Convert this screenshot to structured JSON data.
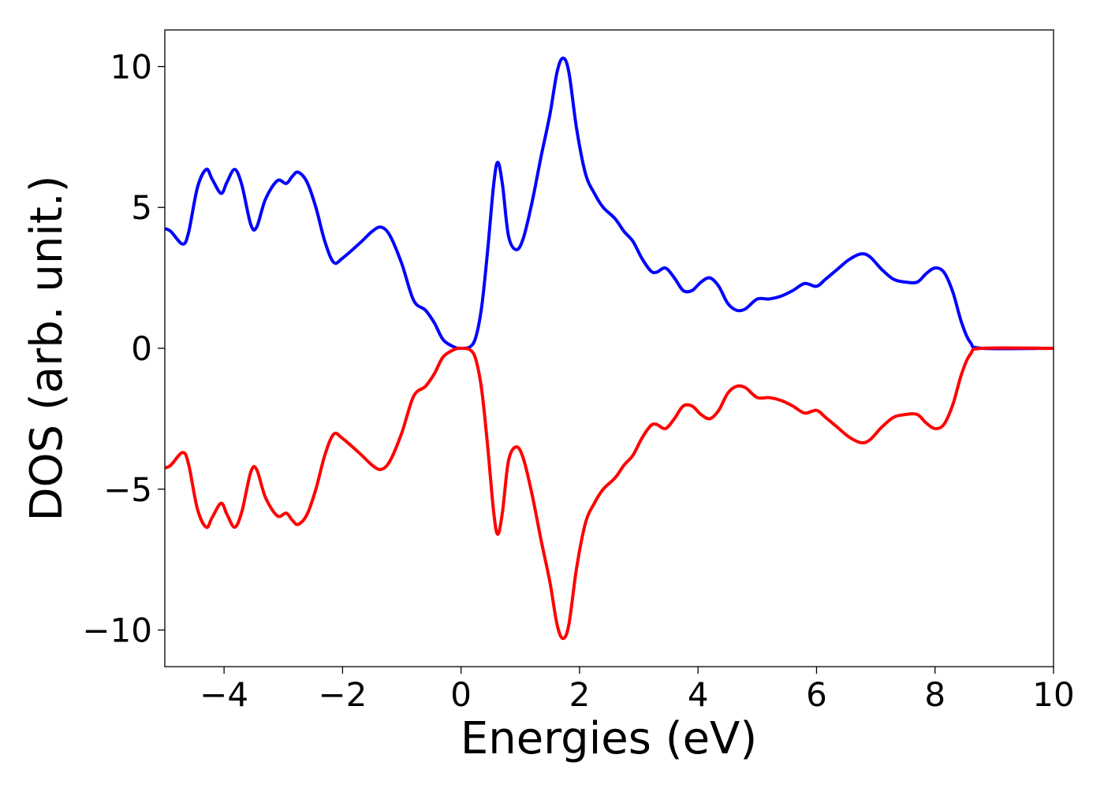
{
  "chart_data": {
    "type": "line",
    "title": "",
    "xlabel": "Energies (eV)",
    "ylabel": "DOS (arb. unit.)",
    "xlim": [
      -5,
      10
    ],
    "ylim": [
      -11.3,
      11.3
    ],
    "x_ticks": [
      -4,
      -2,
      0,
      2,
      4,
      6,
      8,
      10
    ],
    "x_tick_labels": [
      "−4",
      "−2",
      "0",
      "2",
      "4",
      "6",
      "8",
      "10"
    ],
    "y_ticks": [
      -10,
      -5,
      0,
      5,
      10
    ],
    "y_tick_labels": [
      "−10",
      "−5",
      "0",
      "5",
      "10"
    ],
    "grid": false,
    "legend": "none",
    "series": [
      {
        "color": "#0000ff",
        "points": [
          [
            -5.0,
            4.25
          ],
          [
            -4.9,
            4.15
          ],
          [
            -4.7,
            3.7
          ],
          [
            -4.6,
            4.1
          ],
          [
            -4.45,
            5.7
          ],
          [
            -4.3,
            6.35
          ],
          [
            -4.2,
            6.0
          ],
          [
            -4.05,
            5.5
          ],
          [
            -3.95,
            5.9
          ],
          [
            -3.82,
            6.35
          ],
          [
            -3.7,
            5.8
          ],
          [
            -3.55,
            4.4
          ],
          [
            -3.45,
            4.3
          ],
          [
            -3.3,
            5.3
          ],
          [
            -3.1,
            5.95
          ],
          [
            -2.95,
            5.85
          ],
          [
            -2.85,
            6.1
          ],
          [
            -2.75,
            6.25
          ],
          [
            -2.6,
            5.9
          ],
          [
            -2.45,
            5.0
          ],
          [
            -2.3,
            3.8
          ],
          [
            -2.15,
            3.05
          ],
          [
            -2.0,
            3.2
          ],
          [
            -1.7,
            3.75
          ],
          [
            -1.5,
            4.15
          ],
          [
            -1.35,
            4.3
          ],
          [
            -1.2,
            4.0
          ],
          [
            -1.0,
            3.0
          ],
          [
            -0.8,
            1.7
          ],
          [
            -0.6,
            1.35
          ],
          [
            -0.45,
            0.9
          ],
          [
            -0.3,
            0.3
          ],
          [
            -0.1,
            0.03
          ],
          [
            0.0,
            0.0
          ],
          [
            0.15,
            0.05
          ],
          [
            0.25,
            0.4
          ],
          [
            0.35,
            1.5
          ],
          [
            0.45,
            3.5
          ],
          [
            0.55,
            5.8
          ],
          [
            0.62,
            6.6
          ],
          [
            0.7,
            5.8
          ],
          [
            0.8,
            4.0
          ],
          [
            0.93,
            3.5
          ],
          [
            1.05,
            3.9
          ],
          [
            1.2,
            5.2
          ],
          [
            1.35,
            6.8
          ],
          [
            1.5,
            8.3
          ],
          [
            1.62,
            9.8
          ],
          [
            1.72,
            10.3
          ],
          [
            1.82,
            9.8
          ],
          [
            1.95,
            7.8
          ],
          [
            2.1,
            6.2
          ],
          [
            2.25,
            5.5
          ],
          [
            2.4,
            5.0
          ],
          [
            2.6,
            4.6
          ],
          [
            2.75,
            4.15
          ],
          [
            2.9,
            3.8
          ],
          [
            3.05,
            3.2
          ],
          [
            3.2,
            2.75
          ],
          [
            3.3,
            2.7
          ],
          [
            3.45,
            2.85
          ],
          [
            3.6,
            2.5
          ],
          [
            3.75,
            2.05
          ],
          [
            3.9,
            2.05
          ],
          [
            4.05,
            2.35
          ],
          [
            4.2,
            2.5
          ],
          [
            4.35,
            2.2
          ],
          [
            4.5,
            1.6
          ],
          [
            4.65,
            1.35
          ],
          [
            4.8,
            1.4
          ],
          [
            5.0,
            1.75
          ],
          [
            5.2,
            1.75
          ],
          [
            5.4,
            1.85
          ],
          [
            5.6,
            2.05
          ],
          [
            5.8,
            2.3
          ],
          [
            6.0,
            2.2
          ],
          [
            6.15,
            2.45
          ],
          [
            6.35,
            2.8
          ],
          [
            6.55,
            3.15
          ],
          [
            6.75,
            3.35
          ],
          [
            6.9,
            3.25
          ],
          [
            7.1,
            2.8
          ],
          [
            7.3,
            2.45
          ],
          [
            7.5,
            2.35
          ],
          [
            7.7,
            2.35
          ],
          [
            7.85,
            2.65
          ],
          [
            8.0,
            2.85
          ],
          [
            8.15,
            2.7
          ],
          [
            8.3,
            2.0
          ],
          [
            8.45,
            0.9
          ],
          [
            8.6,
            0.2
          ],
          [
            8.8,
            0.0
          ],
          [
            10.0,
            0.0
          ]
        ]
      },
      {
        "color": "#ff0000",
        "points": [
          [
            -5.0,
            -4.25
          ],
          [
            -4.9,
            -4.15
          ],
          [
            -4.7,
            -3.7
          ],
          [
            -4.6,
            -4.1
          ],
          [
            -4.45,
            -5.7
          ],
          [
            -4.3,
            -6.35
          ],
          [
            -4.2,
            -6.0
          ],
          [
            -4.05,
            -5.5
          ],
          [
            -3.95,
            -5.9
          ],
          [
            -3.82,
            -6.35
          ],
          [
            -3.7,
            -5.8
          ],
          [
            -3.55,
            -4.4
          ],
          [
            -3.45,
            -4.3
          ],
          [
            -3.3,
            -5.3
          ],
          [
            -3.1,
            -5.95
          ],
          [
            -2.95,
            -5.85
          ],
          [
            -2.85,
            -6.1
          ],
          [
            -2.75,
            -6.25
          ],
          [
            -2.6,
            -5.9
          ],
          [
            -2.45,
            -5.0
          ],
          [
            -2.3,
            -3.8
          ],
          [
            -2.15,
            -3.05
          ],
          [
            -2.0,
            -3.2
          ],
          [
            -1.7,
            -3.75
          ],
          [
            -1.5,
            -4.15
          ],
          [
            -1.35,
            -4.3
          ],
          [
            -1.2,
            -4.0
          ],
          [
            -1.0,
            -3.0
          ],
          [
            -0.8,
            -1.7
          ],
          [
            -0.6,
            -1.35
          ],
          [
            -0.45,
            -0.9
          ],
          [
            -0.3,
            -0.3
          ],
          [
            -0.1,
            -0.03
          ],
          [
            0.0,
            0.0
          ],
          [
            0.15,
            -0.05
          ],
          [
            0.25,
            -0.4
          ],
          [
            0.35,
            -1.5
          ],
          [
            0.45,
            -3.5
          ],
          [
            0.55,
            -5.8
          ],
          [
            0.62,
            -6.6
          ],
          [
            0.7,
            -5.8
          ],
          [
            0.8,
            -4.0
          ],
          [
            0.93,
            -3.5
          ],
          [
            1.05,
            -3.9
          ],
          [
            1.2,
            -5.2
          ],
          [
            1.35,
            -6.8
          ],
          [
            1.5,
            -8.3
          ],
          [
            1.62,
            -9.8
          ],
          [
            1.72,
            -10.3
          ],
          [
            1.82,
            -9.8
          ],
          [
            1.95,
            -7.8
          ],
          [
            2.1,
            -6.2
          ],
          [
            2.25,
            -5.5
          ],
          [
            2.4,
            -5.0
          ],
          [
            2.6,
            -4.6
          ],
          [
            2.75,
            -4.15
          ],
          [
            2.9,
            -3.8
          ],
          [
            3.05,
            -3.2
          ],
          [
            3.2,
            -2.75
          ],
          [
            3.3,
            -2.7
          ],
          [
            3.45,
            -2.85
          ],
          [
            3.6,
            -2.5
          ],
          [
            3.75,
            -2.05
          ],
          [
            3.9,
            -2.05
          ],
          [
            4.05,
            -2.35
          ],
          [
            4.2,
            -2.5
          ],
          [
            4.35,
            -2.2
          ],
          [
            4.5,
            -1.6
          ],
          [
            4.65,
            -1.35
          ],
          [
            4.8,
            -1.4
          ],
          [
            5.0,
            -1.75
          ],
          [
            5.2,
            -1.75
          ],
          [
            5.4,
            -1.85
          ],
          [
            5.6,
            -2.05
          ],
          [
            5.8,
            -2.3
          ],
          [
            6.0,
            -2.2
          ],
          [
            6.15,
            -2.45
          ],
          [
            6.35,
            -2.8
          ],
          [
            6.55,
            -3.15
          ],
          [
            6.75,
            -3.35
          ],
          [
            6.9,
            -3.25
          ],
          [
            7.1,
            -2.8
          ],
          [
            7.3,
            -2.45
          ],
          [
            7.5,
            -2.35
          ],
          [
            7.7,
            -2.35
          ],
          [
            7.85,
            -2.65
          ],
          [
            8.0,
            -2.85
          ],
          [
            8.15,
            -2.7
          ],
          [
            8.3,
            -2.0
          ],
          [
            8.45,
            -0.9
          ],
          [
            8.6,
            -0.2
          ],
          [
            8.8,
            0.0
          ],
          [
            10.0,
            0.0
          ]
        ]
      }
    ]
  }
}
